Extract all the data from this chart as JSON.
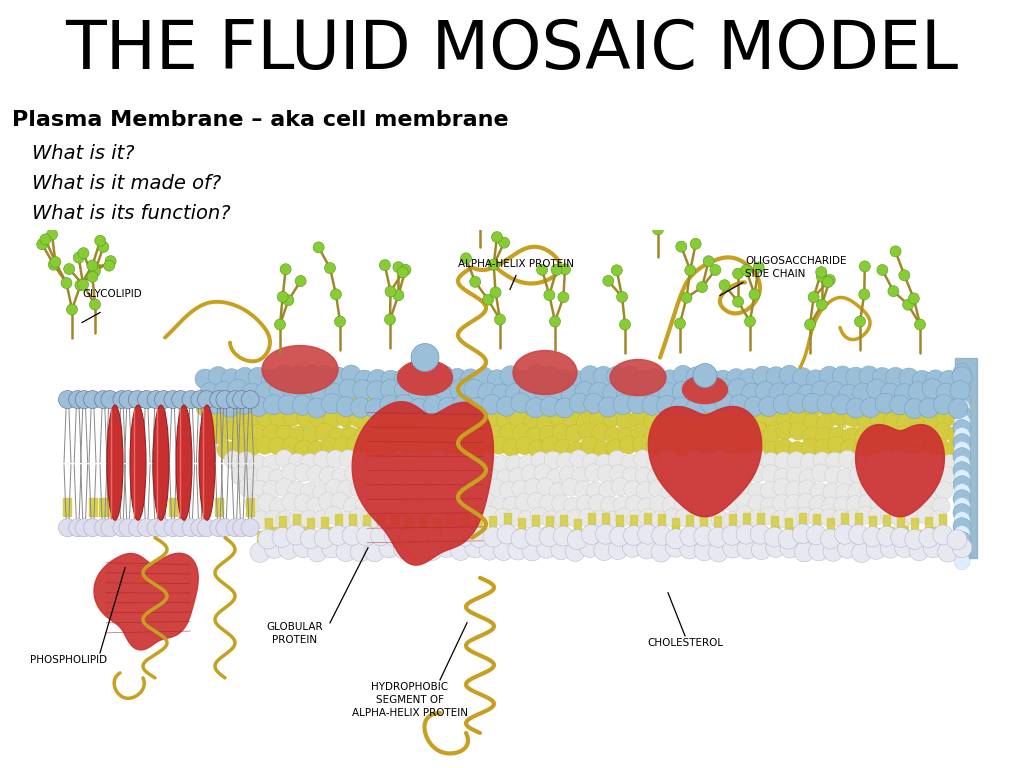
{
  "title": "THE FLUID MOSAIC MODEL",
  "subtitle": "Plasma Membrane – aka cell membrane",
  "line1": "What is it?",
  "line2": "What is it made of?",
  "line3": "What is its function?",
  "bg_color": "#ffffff",
  "title_fontsize": 48,
  "subtitle_fontsize": 16,
  "line_fontsize": 14,
  "head_color_top": "#9BBFD8",
  "head_color_bottom": "#e8e8e8",
  "tail_color": "#d4cc40",
  "protein_color": "#cc3333",
  "coil_color": "#c8a020",
  "glycan_color": "#88cc33",
  "label_fs": 7.5
}
